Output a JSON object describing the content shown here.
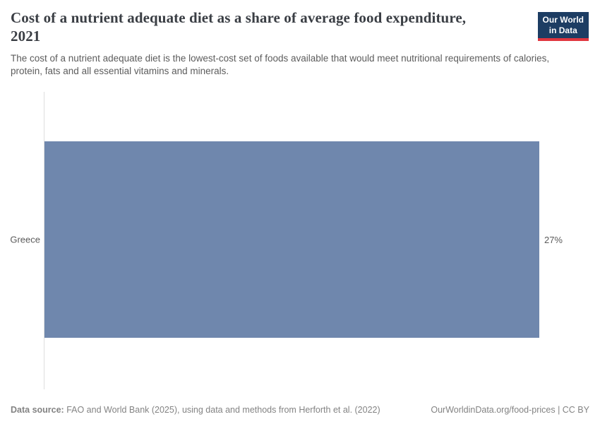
{
  "header": {
    "title": "Cost of a nutrient adequate diet as a share of average food expenditure, 2021",
    "subtitle": "The cost of a nutrient adequate diet is the lowest-cost set of foods available that would meet nutritional requirements of calories, protein, fats and all essential vitamins and minerals.",
    "logo": {
      "line1": "Our World",
      "line2": "in Data"
    }
  },
  "chart_data": {
    "type": "bar",
    "orientation": "horizontal",
    "title": "Cost of a nutrient adequate diet as a share of average food expenditure, 2021",
    "categories": [
      "Greece"
    ],
    "values": [
      27
    ],
    "value_labels": [
      "27%"
    ],
    "xlabel": "",
    "ylabel": "",
    "xlim": [
      0,
      27
    ],
    "grid": false,
    "legend": false,
    "bar_color": "#6f87ad",
    "axis_line_color": "#dedede"
  },
  "footer": {
    "datasource_label": "Data source:",
    "datasource_text": " FAO and World Bank (2025), using data and methods from Herforth et al. (2022)",
    "link_text": "OurWorldinData.org/food-prices | CC BY"
  }
}
